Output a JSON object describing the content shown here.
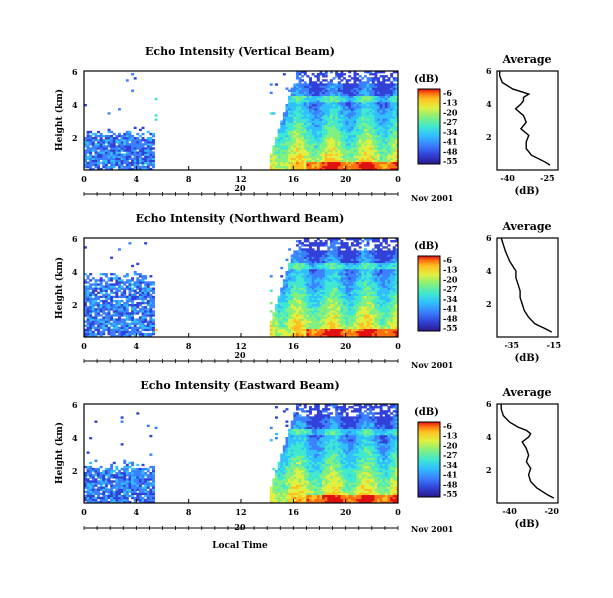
{
  "chart_data": [
    {
      "type": "heatmap",
      "title": "Echo Intensity (Vertical Beam)",
      "ylabel": "Height (km)",
      "xlim": [
        0,
        24
      ],
      "ylim": [
        0,
        6
      ],
      "x_ticks": [
        "0",
        "4",
        "8",
        "12",
        "16",
        "20",
        "0"
      ],
      "y_ticks": [
        "2",
        "4",
        "6"
      ],
      "date_day": "20",
      "date_month": "Nov 2001",
      "colorbar_unit": "(dB)",
      "colorbar_ticks": [
        "-6",
        "-13",
        "-20",
        "-27",
        "-34",
        "-41",
        "-48",
        "-55"
      ],
      "gap_hours": [
        5.5,
        14.3
      ],
      "average": {
        "title": "Average",
        "xlabel": "(dB)",
        "x_ticks": [
          "-40",
          "-25"
        ],
        "xlim": [
          -44,
          -21
        ],
        "y_ticks": [
          "2",
          "4",
          "6"
        ],
        "ylim": [
          0,
          6
        ],
        "profile_db": [
          -24,
          -26,
          -31,
          -33,
          -33,
          -32,
          -35,
          -33,
          -34,
          -37,
          -35,
          -34,
          -34,
          -32,
          -38,
          -42,
          -43,
          -43
        ],
        "profile_km": [
          0.3,
          0.5,
          0.9,
          1.3,
          1.7,
          2.1,
          2.5,
          2.9,
          3.3,
          3.7,
          4.0,
          4.2,
          4.4,
          4.6,
          4.9,
          5.3,
          5.7,
          6.0
        ]
      }
    },
    {
      "type": "heatmap",
      "title": "Echo Intensity (Northward Beam)",
      "ylabel": "Height (km)",
      "xlim": [
        0,
        24
      ],
      "ylim": [
        0,
        6
      ],
      "x_ticks": [
        "0",
        "4",
        "8",
        "12",
        "16",
        "20",
        "0"
      ],
      "y_ticks": [
        "2",
        "4",
        "6"
      ],
      "date_day": "20",
      "date_month": "Nov 2001",
      "colorbar_unit": "(dB)",
      "colorbar_ticks": [
        "-6",
        "-13",
        "-20",
        "-27",
        "-34",
        "-41",
        "-48",
        "-55"
      ],
      "gap_hours": [
        5.5,
        14.3
      ],
      "average": {
        "title": "Average",
        "xlabel": "(dB)",
        "x_ticks": [
          "-35",
          "-15"
        ],
        "xlim": [
          -42,
          -13
        ],
        "y_ticks": [
          "2",
          "4",
          "6"
        ],
        "ylim": [
          0,
          6
        ],
        "profile_db": [
          -16,
          -19,
          -24,
          -27,
          -29,
          -30,
          -31,
          -31,
          -32,
          -33,
          -33,
          -34,
          -35,
          -36,
          -37,
          -38,
          -39,
          -40
        ],
        "profile_km": [
          0.3,
          0.5,
          0.8,
          1.2,
          1.6,
          2.0,
          2.4,
          2.8,
          3.2,
          3.6,
          4.0,
          4.2,
          4.4,
          4.6,
          4.9,
          5.2,
          5.6,
          6.0
        ]
      }
    },
    {
      "type": "heatmap",
      "title": "Echo Intensity (Eastward Beam)",
      "ylabel": "Height (km)",
      "xlabel": "Local Time",
      "xlim": [
        0,
        24
      ],
      "ylim": [
        0,
        6
      ],
      "x_ticks": [
        "0",
        "4",
        "8",
        "12",
        "16",
        "20",
        "0"
      ],
      "y_ticks": [
        "2",
        "4",
        "6"
      ],
      "date_day": "20",
      "date_month": "Nov 2001",
      "colorbar_unit": "(dB)",
      "colorbar_ticks": [
        "-6",
        "-13",
        "-20",
        "-27",
        "-34",
        "-41",
        "-48",
        "-55"
      ],
      "gap_hours": [
        5.5,
        14.3
      ],
      "average": {
        "title": "Average",
        "xlabel": "(dB)",
        "x_ticks": [
          "-40",
          "-20"
        ],
        "xlim": [
          -46,
          -17
        ],
        "y_ticks": [
          "2",
          "4",
          "6"
        ],
        "ylim": [
          0,
          6
        ],
        "profile_db": [
          -19,
          -22,
          -27,
          -30,
          -31,
          -30,
          -32,
          -31,
          -32,
          -34,
          -31,
          -30,
          -32,
          -36,
          -40,
          -43,
          -44,
          -44
        ],
        "profile_km": [
          0.3,
          0.5,
          0.9,
          1.3,
          1.7,
          2.1,
          2.5,
          2.9,
          3.3,
          3.7,
          4.0,
          4.2,
          4.4,
          4.6,
          4.9,
          5.3,
          5.7,
          6.0
        ]
      }
    }
  ],
  "colors": {
    "scale": [
      "#2a1a8a",
      "#3040d8",
      "#3a80ff",
      "#30c0ff",
      "#40e8d0",
      "#80f080",
      "#e0f040",
      "#ffc020",
      "#ff7010",
      "#e01010"
    ]
  }
}
